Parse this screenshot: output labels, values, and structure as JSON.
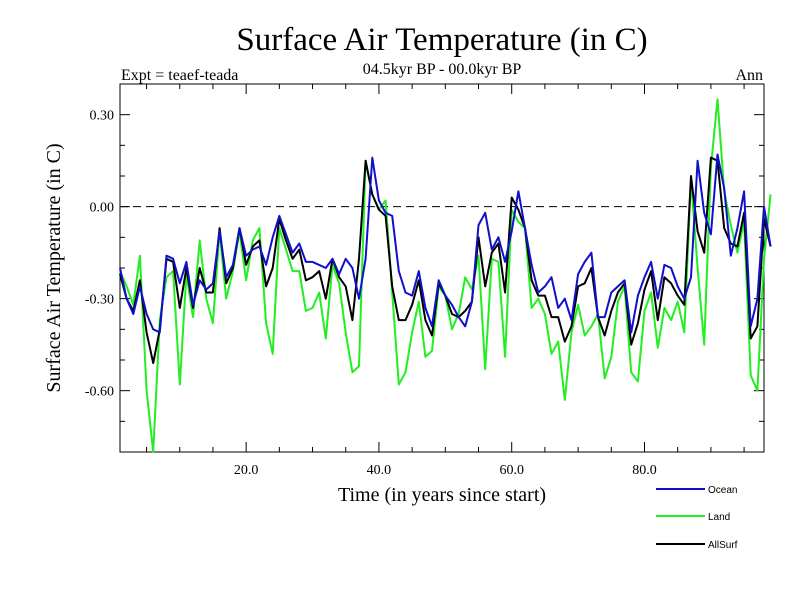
{
  "chart_data": {
    "type": "line",
    "title": "Surface Air Temperature (in C)",
    "subtitle": "04.5kyr BP - 00.0kyr BP",
    "left_label": "Expt = teaef-teada",
    "right_label": "Ann",
    "xlabel": "Time (in years since start)",
    "ylabel": "Surface Air Temperature (in C)",
    "xlim": [
      1,
      98
    ],
    "ylim": [
      -0.8,
      0.4
    ],
    "xticks": [
      {
        "value": 20,
        "label": "20.0"
      },
      {
        "value": 40,
        "label": "40.0"
      },
      {
        "value": 60,
        "label": "60.0"
      },
      {
        "value": 80,
        "label": "80.0"
      }
    ],
    "yticks": [
      {
        "value": 0.3,
        "label": "0.30"
      },
      {
        "value": 0.0,
        "label": "0.00"
      },
      {
        "value": -0.3,
        "label": "-0.30"
      },
      {
        "value": -0.6,
        "label": "-0.60"
      }
    ],
    "reference_line": {
      "value": 0.0,
      "style": "dashed"
    },
    "x_start": 1,
    "series": [
      {
        "name": "Ocean",
        "color": "#1010cc",
        "values": [
          -0.2,
          -0.3,
          -0.35,
          -0.26,
          -0.35,
          -0.4,
          -0.41,
          -0.16,
          -0.17,
          -0.25,
          -0.18,
          -0.32,
          -0.24,
          -0.27,
          -0.25,
          -0.08,
          -0.23,
          -0.19,
          -0.07,
          -0.16,
          -0.14,
          -0.13,
          -0.19,
          -0.1,
          -0.03,
          -0.09,
          -0.15,
          -0.12,
          -0.18,
          -0.18,
          -0.19,
          -0.2,
          -0.17,
          -0.22,
          -0.17,
          -0.2,
          -0.3,
          -0.17,
          0.16,
          0.02,
          -0.02,
          -0.03,
          -0.21,
          -0.28,
          -0.29,
          -0.21,
          -0.33,
          -0.39,
          -0.24,
          -0.29,
          -0.32,
          -0.36,
          -0.39,
          -0.31,
          -0.06,
          -0.02,
          -0.14,
          -0.1,
          -0.18,
          -0.08,
          0.05,
          -0.07,
          -0.19,
          -0.28,
          -0.26,
          -0.23,
          -0.33,
          -0.3,
          -0.37,
          -0.22,
          -0.18,
          -0.15,
          -0.36,
          -0.36,
          -0.28,
          -0.26,
          -0.24,
          -0.41,
          -0.29,
          -0.23,
          -0.18,
          -0.3,
          -0.19,
          -0.2,
          -0.26,
          -0.3,
          -0.23,
          0.15,
          -0.02,
          -0.09,
          0.17,
          0.06,
          -0.16,
          -0.07,
          0.05,
          -0.39,
          -0.3,
          0.0,
          -0.13
        ]
      },
      {
        "name": "Land",
        "color": "#22ee22",
        "values": [
          -0.21,
          -0.26,
          -0.32,
          -0.16,
          -0.6,
          -0.8,
          -0.37,
          -0.23,
          -0.21,
          -0.58,
          -0.22,
          -0.36,
          -0.11,
          -0.3,
          -0.38,
          -0.08,
          -0.3,
          -0.21,
          -0.08,
          -0.24,
          -0.11,
          -0.07,
          -0.38,
          -0.48,
          -0.07,
          -0.14,
          -0.21,
          -0.21,
          -0.34,
          -0.33,
          -0.28,
          -0.43,
          -0.19,
          -0.25,
          -0.41,
          -0.54,
          -0.52,
          0.15,
          0.04,
          -0.01,
          0.02,
          -0.28,
          -0.58,
          -0.54,
          -0.41,
          -0.31,
          -0.49,
          -0.47,
          -0.26,
          -0.29,
          -0.4,
          -0.35,
          -0.23,
          -0.27,
          -0.16,
          -0.53,
          -0.17,
          -0.18,
          -0.49,
          -0.01,
          -0.05,
          -0.07,
          -0.33,
          -0.3,
          -0.35,
          -0.48,
          -0.44,
          -0.63,
          -0.41,
          -0.32,
          -0.42,
          -0.39,
          -0.35,
          -0.56,
          -0.49,
          -0.31,
          -0.26,
          -0.54,
          -0.57,
          -0.34,
          -0.28,
          -0.46,
          -0.33,
          -0.37,
          -0.31,
          -0.41,
          0.09,
          -0.2,
          -0.45,
          0.13,
          0.35,
          0.05,
          -0.06,
          -0.15,
          -0.05,
          -0.55,
          -0.6,
          -0.17,
          0.04
        ]
      },
      {
        "name": "AllSurf",
        "color": "#000000",
        "values": [
          -0.22,
          -0.3,
          -0.34,
          -0.24,
          -0.41,
          -0.51,
          -0.4,
          -0.17,
          -0.18,
          -0.33,
          -0.2,
          -0.33,
          -0.2,
          -0.28,
          -0.28,
          -0.07,
          -0.25,
          -0.2,
          -0.07,
          -0.19,
          -0.13,
          -0.11,
          -0.26,
          -0.2,
          -0.04,
          -0.11,
          -0.17,
          -0.14,
          -0.24,
          -0.23,
          -0.21,
          -0.3,
          -0.17,
          -0.23,
          -0.26,
          -0.37,
          -0.17,
          0.15,
          0.04,
          -0.01,
          -0.03,
          -0.26,
          -0.37,
          -0.37,
          -0.32,
          -0.24,
          -0.37,
          -0.42,
          -0.25,
          -0.29,
          -0.35,
          -0.36,
          -0.34,
          -0.31,
          -0.1,
          -0.26,
          -0.15,
          -0.12,
          -0.28,
          0.03,
          -0.01,
          -0.07,
          -0.24,
          -0.29,
          -0.29,
          -0.36,
          -0.36,
          -0.44,
          -0.39,
          -0.26,
          -0.25,
          -0.2,
          -0.36,
          -0.42,
          -0.34,
          -0.28,
          -0.25,
          -0.45,
          -0.38,
          -0.27,
          -0.21,
          -0.37,
          -0.23,
          -0.25,
          -0.29,
          -0.32,
          0.1,
          -0.08,
          -0.15,
          0.16,
          0.15,
          -0.07,
          -0.12,
          -0.13,
          -0.02,
          -0.43,
          -0.39,
          -0.04,
          -0.13
        ]
      }
    ],
    "legend": {
      "placement": "bottom-right"
    }
  }
}
